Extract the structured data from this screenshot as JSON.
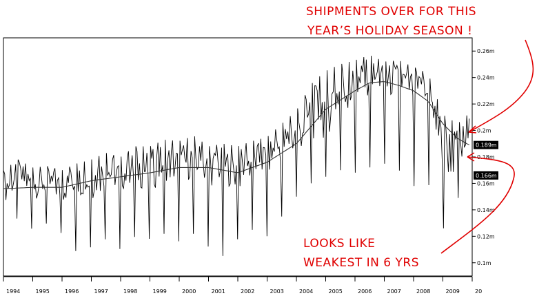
{
  "chart_data": {
    "type": "line",
    "title": "",
    "xlabel": "",
    "ylabel": "",
    "xlim": [
      1994.0,
      2010.0
    ],
    "ylim": [
      0.09,
      0.27
    ],
    "x_ticks": [
      "1994",
      "1995",
      "1996",
      "1997",
      "1998",
      "1999",
      "2000",
      "2001",
      "2002",
      "2003",
      "2004",
      "2005",
      "2006",
      "2007",
      "2008",
      "2009",
      "20"
    ],
    "y_ticks": [
      {
        "value": 0.26,
        "label": "0.26m"
      },
      {
        "value": 0.24,
        "label": "0.24m"
      },
      {
        "value": 0.22,
        "label": "0.22m"
      },
      {
        "value": 0.2,
        "label": "0.2m"
      },
      {
        "value": 0.18,
        "label": "0.18m"
      },
      {
        "value": 0.16,
        "label": "0.16m"
      },
      {
        "value": 0.14,
        "label": "0.14m"
      },
      {
        "value": 0.12,
        "label": "0.12m"
      },
      {
        "value": 0.1,
        "label": "0.1m"
      }
    ],
    "value_badges": [
      {
        "value": 0.189,
        "label": "0.189m"
      },
      {
        "value": 0.166,
        "label": "0.166m"
      }
    ],
    "series": [
      {
        "style": "spiky",
        "x": [
          1994.0,
          1994.5,
          1995.0,
          1995.5,
          1996.0,
          1996.5,
          1997.0,
          1997.5,
          1998.0,
          1998.5,
          1999.0,
          1999.5,
          2000.0,
          2000.5,
          2001.0,
          2001.5,
          2002.0,
          2002.5,
          2003.0,
          2003.5,
          2004.0,
          2004.5,
          2005.0,
          2005.5,
          2006.0,
          2006.5,
          2007.0,
          2007.5,
          2008.0,
          2008.5,
          2009.0,
          2009.5,
          2009.9
        ],
        "values": [
          0.155,
          0.165,
          0.158,
          0.16,
          0.155,
          0.162,
          0.16,
          0.168,
          0.165,
          0.17,
          0.168,
          0.175,
          0.172,
          0.178,
          0.17,
          0.173,
          0.168,
          0.175,
          0.178,
          0.188,
          0.195,
          0.21,
          0.215,
          0.228,
          0.23,
          0.24,
          0.235,
          0.238,
          0.23,
          0.225,
          0.185,
          0.18,
          0.195
        ],
        "highs": [
          0.17,
          0.178,
          0.172,
          0.173,
          0.17,
          0.175,
          0.178,
          0.183,
          0.18,
          0.188,
          0.188,
          0.193,
          0.192,
          0.196,
          0.188,
          0.19,
          0.188,
          0.192,
          0.195,
          0.205,
          0.215,
          0.235,
          0.245,
          0.25,
          0.253,
          0.257,
          0.252,
          0.253,
          0.248,
          0.243,
          0.212,
          0.205,
          0.213
        ],
        "lows": [
          0.115,
          0.135,
          0.125,
          0.13,
          0.122,
          0.108,
          0.112,
          0.118,
          0.11,
          0.12,
          0.118,
          0.122,
          0.116,
          0.122,
          0.112,
          0.105,
          0.118,
          0.125,
          0.12,
          0.135,
          0.15,
          0.16,
          0.165,
          0.17,
          0.168,
          0.172,
          0.175,
          0.17,
          0.158,
          0.16,
          0.125,
          0.148,
          0.165
        ]
      },
      {
        "style": "moving-average",
        "x": [
          1994.0,
          1995.0,
          1996.0,
          1997.0,
          1998.0,
          1999.0,
          2000.0,
          2001.0,
          2002.0,
          2003.0,
          2004.0,
          2004.5,
          2005.0,
          2005.5,
          2006.0,
          2006.5,
          2007.0,
          2007.5,
          2008.0,
          2008.5,
          2009.0,
          2009.5,
          2009.9
        ],
        "values": [
          0.156,
          0.157,
          0.157,
          0.162,
          0.165,
          0.168,
          0.172,
          0.172,
          0.168,
          0.176,
          0.19,
          0.203,
          0.216,
          0.223,
          0.23,
          0.236,
          0.237,
          0.234,
          0.23,
          0.222,
          0.205,
          0.194,
          0.189
        ]
      }
    ],
    "annotations": [
      {
        "text": "SHIPMENTS OVER FOR THIS"
      },
      {
        "text": "YEAR’S HOLIDAY SEASON !"
      },
      {
        "text": "LOOKS LIKE"
      },
      {
        "text": "WEAKEST IN 6 YRS"
      }
    ],
    "colors": {
      "series": "#000000",
      "annotation": "#e00000",
      "badge_bg": "#000000",
      "badge_text": "#ffffff"
    }
  }
}
